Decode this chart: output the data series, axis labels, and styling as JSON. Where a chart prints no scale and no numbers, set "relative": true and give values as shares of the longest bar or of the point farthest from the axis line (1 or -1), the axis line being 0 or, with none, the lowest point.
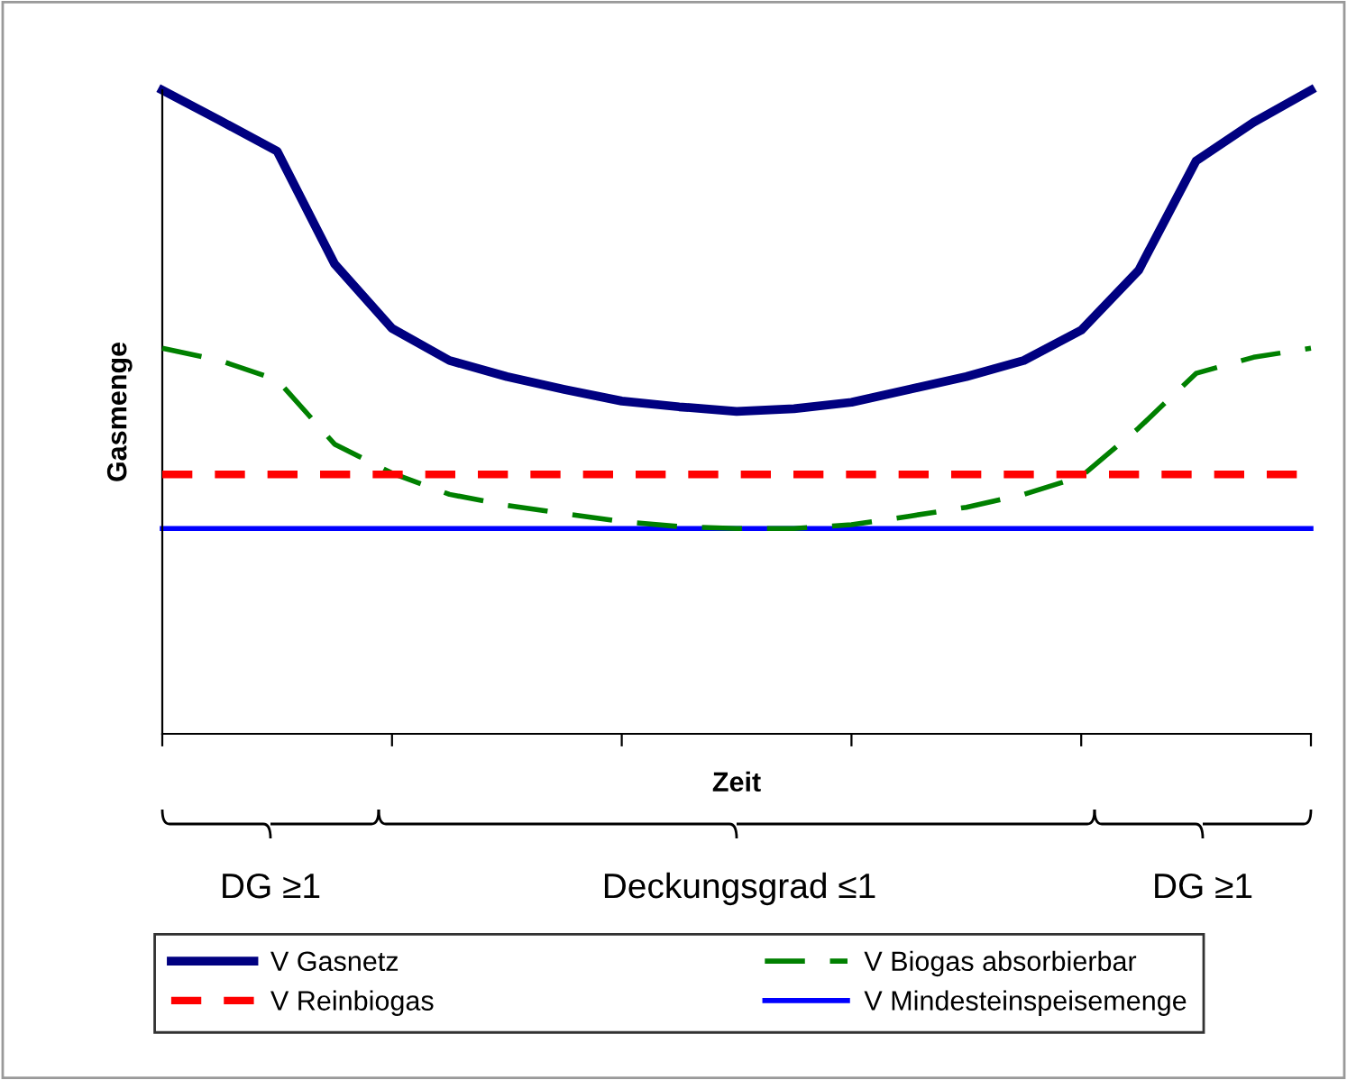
{
  "chart_data": {
    "type": "line",
    "relative": true,
    "xlabel": "Zeit",
    "ylabel": "Gasmenge",
    "categories": [
      null,
      null,
      null,
      null,
      null,
      null,
      null,
      null,
      null,
      null,
      null,
      null,
      null,
      null,
      null,
      null,
      null,
      null,
      null,
      null,
      null
    ],
    "grid": false,
    "legend": "bottom",
    "tick_labels": false,
    "annotations": [
      "DG ≥1",
      "Deckungsgrad ≤1",
      "DG ≥1"
    ],
    "series": [
      {
        "name": "V Gasnetz",
        "color": "#000080",
        "line_style": "solid",
        "values": [
          1.0,
          0.953,
          0.905,
          0.73,
          0.63,
          0.58,
          0.555,
          0.535,
          0.517,
          0.508,
          0.501,
          0.505,
          0.515,
          0.535,
          0.555,
          0.58,
          0.627,
          0.72,
          0.89,
          0.95,
          1.0
        ]
      },
      {
        "name": "V Biogas absorbierbar",
        "color": "#008000",
        "line_style": "dashed",
        "values": [
          0.599,
          0.58,
          0.55,
          0.45,
          0.405,
          0.372,
          0.355,
          0.342,
          0.33,
          0.322,
          0.319,
          0.319,
          0.325,
          0.338,
          0.352,
          0.372,
          0.4,
          0.475,
          0.56,
          0.585,
          0.599
        ]
      },
      {
        "name": "V Reinbiogas",
        "color": "#ff0000",
        "line_style": "dotted",
        "values": [
          0.403,
          0.403,
          0.403,
          0.403,
          0.403,
          0.403,
          0.403,
          0.403,
          0.403,
          0.403,
          0.403,
          0.403,
          0.403,
          0.403,
          0.403,
          0.403,
          0.403,
          0.403,
          0.403,
          0.403,
          0.403
        ]
      },
      {
        "name": "V Mindesteinspeisemenge",
        "color": "#0000ff",
        "line_style": "solid",
        "values": [
          0.319,
          0.319,
          0.319,
          0.319,
          0.319,
          0.319,
          0.319,
          0.319,
          0.319,
          0.319,
          0.319,
          0.319,
          0.319,
          0.319,
          0.319,
          0.319,
          0.319,
          0.319,
          0.319,
          0.319,
          0.319
        ]
      }
    ]
  }
}
